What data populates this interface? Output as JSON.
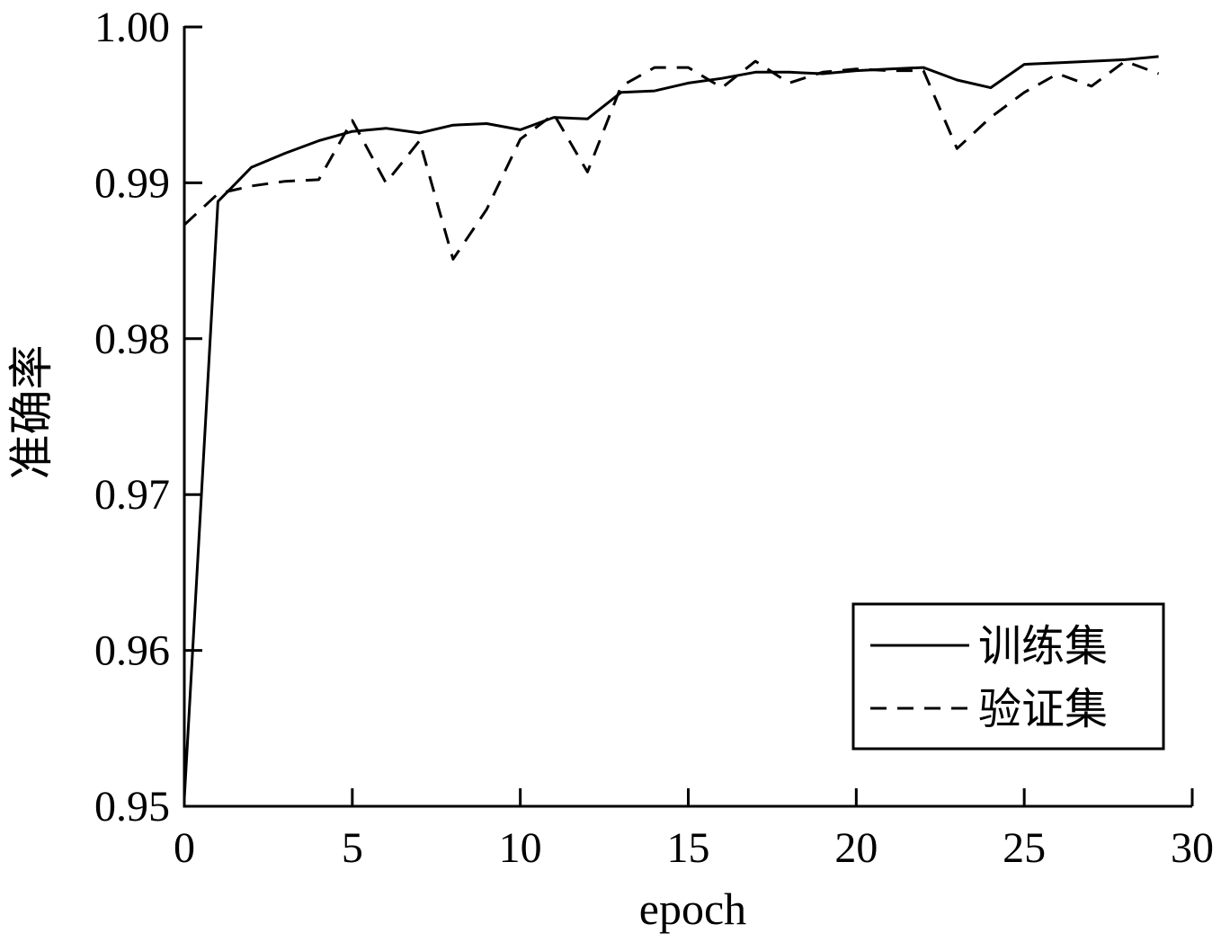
{
  "chart_data": {
    "type": "line",
    "title": "",
    "xlabel": "epoch",
    "ylabel": "准确率",
    "xlim": [
      0,
      30
    ],
    "ylim": [
      0.95,
      1.0
    ],
    "xticks": [
      0,
      5,
      10,
      15,
      20,
      25,
      30
    ],
    "xtick_labels": [
      "0",
      "5",
      "10",
      "15",
      "20",
      "25",
      "30"
    ],
    "yticks": [
      0.95,
      0.96,
      0.97,
      0.98,
      0.99,
      1.0
    ],
    "ytick_labels": [
      "0.95",
      "0.96",
      "0.97",
      "0.98",
      "0.99",
      "1.00"
    ],
    "grid": false,
    "legend_position": "bottom-right",
    "series": [
      {
        "name": "训练集",
        "style": "solid",
        "color": "#000000",
        "x": [
          0,
          1,
          2,
          3,
          4,
          5,
          6,
          7,
          8,
          9,
          10,
          11,
          12,
          13,
          14,
          15,
          16,
          17,
          18,
          19,
          20,
          21,
          22,
          23,
          24,
          25,
          26,
          27,
          28,
          29
        ],
        "y": [
          0.9505,
          0.9888,
          0.991,
          0.9919,
          0.9927,
          0.9933,
          0.9935,
          0.9932,
          0.9937,
          0.9938,
          0.9934,
          0.9942,
          0.9941,
          0.9958,
          0.9959,
          0.9964,
          0.9967,
          0.9971,
          0.9971,
          0.997,
          0.9972,
          0.9973,
          0.9974,
          0.9966,
          0.9961,
          0.9976,
          0.9977,
          0.9978,
          0.9979,
          0.9981
        ]
      },
      {
        "name": "验证集",
        "style": "dashed",
        "color": "#000000",
        "x": [
          0,
          1,
          2,
          3,
          4,
          5,
          6,
          7,
          8,
          9,
          10,
          11,
          12,
          13,
          14,
          15,
          16,
          17,
          18,
          19,
          20,
          21,
          22,
          23,
          24,
          25,
          26,
          27,
          28,
          29
        ],
        "y": [
          0.9873,
          0.9893,
          0.9898,
          0.9901,
          0.9902,
          0.994,
          0.99,
          0.9927,
          0.9851,
          0.9883,
          0.9928,
          0.9944,
          0.9907,
          0.9962,
          0.9974,
          0.9974,
          0.9961,
          0.9978,
          0.9964,
          0.9971,
          0.9973,
          0.9972,
          0.9972,
          0.9922,
          0.9942,
          0.9958,
          0.997,
          0.9962,
          0.9978,
          0.997
        ]
      }
    ]
  }
}
